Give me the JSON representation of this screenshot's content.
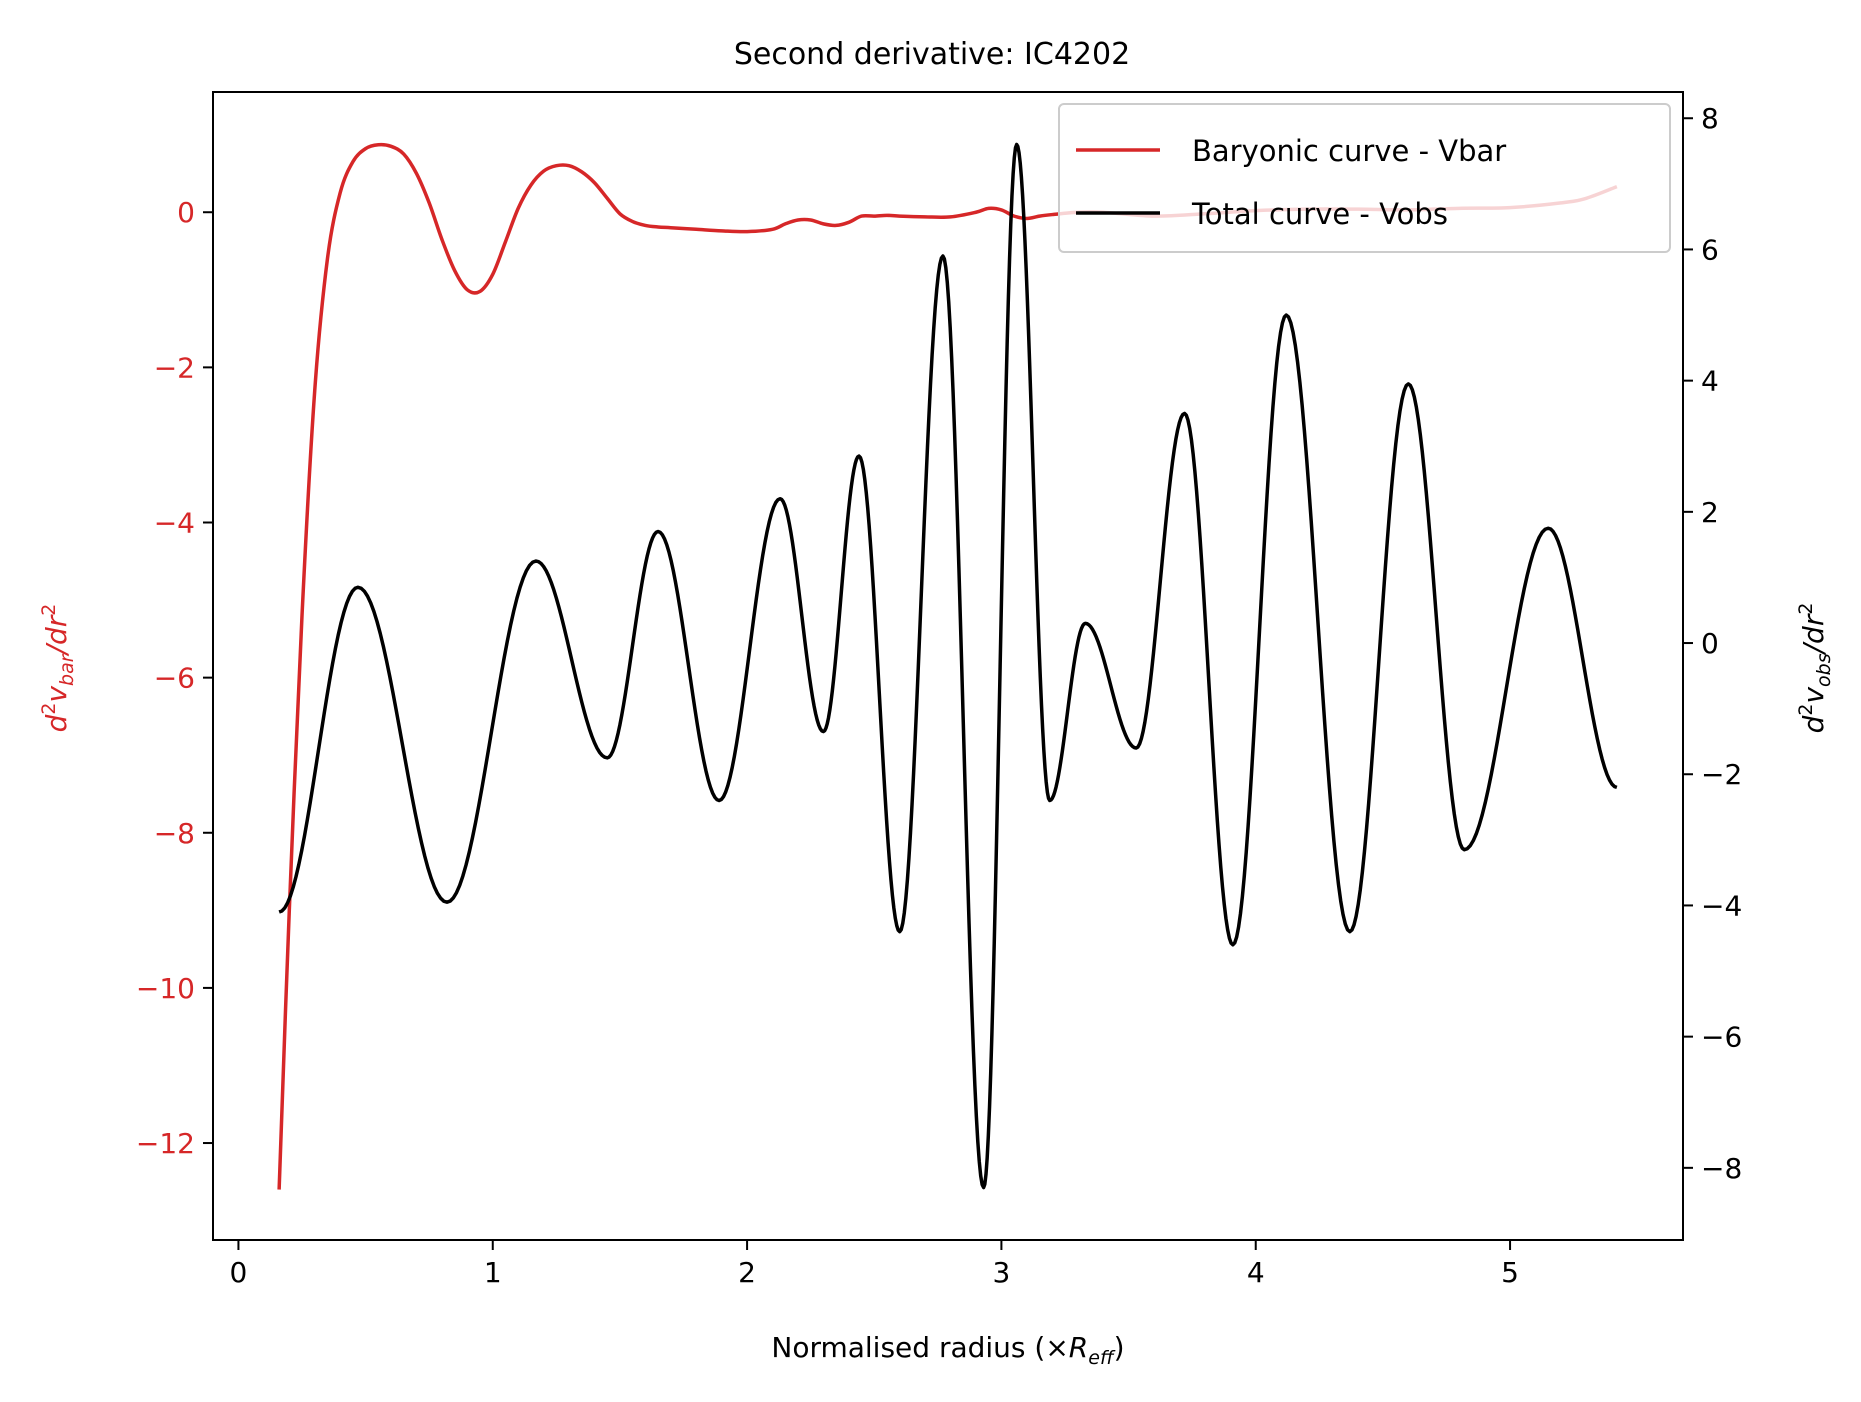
{
  "chart_data": {
    "type": "line",
    "title": "Second derivative: IC4202",
    "xlabel": "Normalised radius (×R_eff)",
    "xlabel_parts": {
      "text": "Normalised radius (×",
      "symbol": "R",
      "sub": "eff",
      "close": ")"
    },
    "ylabel_left": {
      "d": "d",
      "sup": "2",
      "v": "v",
      "sub": "bar",
      "rest": "/dr",
      "sup2": "2"
    },
    "ylabel_right": {
      "d": "d",
      "sup": "2",
      "v": "v",
      "sub": "obs",
      "rest": "/dr",
      "sup2": "2"
    },
    "xlim": [
      -0.1,
      5.68
    ],
    "ylim_left": [
      -13.25,
      1.55
    ],
    "ylim_right": [
      -9.1,
      8.4
    ],
    "x_ticks": [
      0,
      1,
      2,
      3,
      4,
      5
    ],
    "y_left_ticks": [
      0,
      -2,
      -4,
      -6,
      -8,
      -10,
      -12
    ],
    "y_right_ticks": [
      8,
      6,
      4,
      2,
      0,
      -2,
      -4,
      -6,
      -8
    ],
    "legend_position": "top-right",
    "colors": {
      "vbar": "#d62728",
      "vobs": "#000000",
      "axis": "#000000"
    },
    "series": [
      {
        "name": "Baryonic curve - Vbar",
        "axis": "left",
        "color": "#d62728",
        "x": [
          0.16,
          0.2,
          0.25,
          0.3,
          0.35,
          0.4,
          0.45,
          0.5,
          0.55,
          0.6,
          0.65,
          0.7,
          0.75,
          0.8,
          0.85,
          0.9,
          0.95,
          1.0,
          1.05,
          1.1,
          1.15,
          1.2,
          1.25,
          1.3,
          1.35,
          1.4,
          1.45,
          1.5,
          1.55,
          1.6,
          1.65,
          1.7,
          1.8,
          1.9,
          2.0,
          2.1,
          2.15,
          2.2,
          2.25,
          2.3,
          2.35,
          2.4,
          2.45,
          2.5,
          2.55,
          2.6,
          2.7,
          2.8,
          2.9,
          2.95,
          3.0,
          3.05,
          3.1,
          3.15,
          3.2,
          3.3,
          3.4,
          3.6,
          3.8,
          4.0,
          4.2,
          4.4,
          4.6,
          4.8,
          5.0,
          5.2,
          5.3,
          5.42
        ],
        "values": [
          -12.6,
          -9.0,
          -5.2,
          -2.3,
          -0.6,
          0.25,
          0.65,
          0.82,
          0.87,
          0.85,
          0.75,
          0.5,
          0.12,
          -0.35,
          -0.75,
          -1.0,
          -1.02,
          -0.8,
          -0.38,
          0.05,
          0.35,
          0.53,
          0.6,
          0.6,
          0.52,
          0.38,
          0.18,
          -0.02,
          -0.12,
          -0.17,
          -0.19,
          -0.2,
          -0.22,
          -0.24,
          -0.25,
          -0.22,
          -0.15,
          -0.1,
          -0.1,
          -0.15,
          -0.17,
          -0.13,
          -0.05,
          -0.05,
          -0.04,
          -0.05,
          -0.06,
          -0.06,
          0.0,
          0.05,
          0.03,
          -0.05,
          -0.08,
          -0.05,
          -0.03,
          0.0,
          0.0,
          -0.05,
          -0.02,
          0.02,
          0.04,
          0.04,
          0.03,
          0.05,
          0.06,
          0.12,
          0.18,
          0.33
        ]
      },
      {
        "name": "Total curve - Vobs",
        "axis": "right",
        "color": "#000000",
        "x": [
          0.16,
          0.47,
          0.82,
          1.17,
          1.45,
          1.65,
          1.89,
          2.13,
          2.3,
          2.44,
          2.6,
          2.77,
          2.93,
          3.06,
          3.19,
          3.33,
          3.53,
          3.72,
          3.91,
          4.12,
          4.37,
          4.6,
          4.82,
          5.15,
          5.42
        ],
        "values": [
          -4.1,
          0.85,
          -3.95,
          1.25,
          -1.75,
          1.7,
          -2.4,
          2.2,
          -1.35,
          2.85,
          -4.4,
          5.9,
          -8.3,
          7.6,
          -2.4,
          0.3,
          -1.6,
          3.5,
          -4.6,
          5.0,
          -4.4,
          3.95,
          -3.15,
          1.75,
          -2.2
        ]
      }
    ]
  }
}
